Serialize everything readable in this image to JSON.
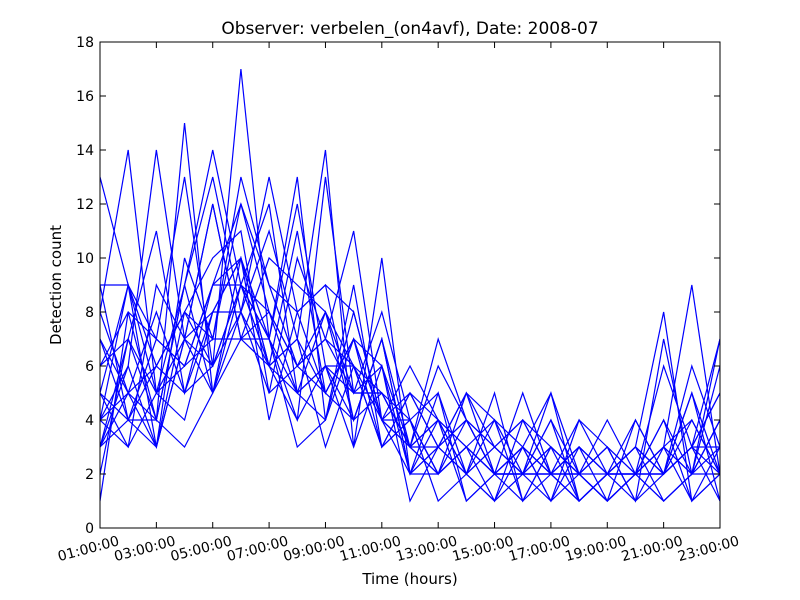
{
  "chart_data": {
    "type": "line",
    "title": "Observer: verbelen_(on4avf), Date: 2008-07",
    "xlabel": "Time (hours)",
    "ylabel": "Detection count",
    "xlim": [
      1,
      23
    ],
    "ylim": [
      0,
      18
    ],
    "x_ticks": [
      {
        "value": 1,
        "label": "01:00:00"
      },
      {
        "value": 3,
        "label": "03:00:00"
      },
      {
        "value": 5,
        "label": "05:00:00"
      },
      {
        "value": 7,
        "label": "07:00:00"
      },
      {
        "value": 9,
        "label": "09:00:00"
      },
      {
        "value": 11,
        "label": "11:00:00"
      },
      {
        "value": 13,
        "label": "13:00:00"
      },
      {
        "value": 15,
        "label": "15:00:00"
      },
      {
        "value": 17,
        "label": "17:00:00"
      },
      {
        "value": 19,
        "label": "19:00:00"
      },
      {
        "value": 21,
        "label": "21:00:00"
      },
      {
        "value": 23,
        "label": "23:00:00"
      }
    ],
    "y_ticks": [
      0,
      2,
      4,
      6,
      8,
      10,
      12,
      14,
      16,
      18
    ],
    "grid": false,
    "line_color": "#0000ff",
    "x": [
      1,
      2,
      3,
      4,
      5,
      6,
      7,
      8,
      9,
      10,
      11,
      12,
      13,
      14,
      15,
      16,
      17,
      18,
      19,
      20,
      21,
      22,
      23
    ],
    "series": [
      {
        "values": [
          13,
          9,
          7,
          6,
          9,
          12,
          9,
          6,
          5,
          7,
          6,
          3,
          2,
          4,
          2,
          3,
          2,
          1,
          2,
          3,
          2,
          3,
          5
        ]
      },
      {
        "values": [
          8,
          14,
          5,
          9,
          14,
          9,
          12,
          5,
          8,
          6,
          4,
          5,
          4,
          3,
          2,
          1,
          3,
          2,
          1,
          2,
          3,
          9,
          2
        ]
      },
      {
        "values": [
          3,
          6,
          14,
          7,
          6,
          17,
          7,
          13,
          4,
          9,
          3,
          4,
          1,
          2,
          3,
          4,
          2,
          2,
          3,
          2,
          1,
          2,
          4
        ]
      },
      {
        "values": [
          5,
          4,
          4,
          15,
          5,
          8,
          13,
          8,
          9,
          4,
          7,
          2,
          3,
          5,
          4,
          2,
          1,
          3,
          2,
          4,
          2,
          3,
          1
        ]
      },
      {
        "values": [
          2,
          7,
          11,
          5,
          8,
          10,
          6,
          4,
          13,
          5,
          5,
          3,
          6,
          4,
          2,
          3,
          5,
          2,
          1,
          2,
          4,
          1,
          3
        ]
      },
      {
        "values": [
          9,
          9,
          3,
          10,
          7,
          12,
          8,
          6,
          7,
          11,
          4,
          2,
          5,
          1,
          2,
          2,
          2,
          4,
          3,
          2,
          6,
          3,
          7
        ]
      },
      {
        "values": [
          4,
          3,
          9,
          7,
          12,
          7,
          10,
          9,
          8,
          5,
          8,
          4,
          2,
          3,
          1,
          4,
          3,
          1,
          2,
          1,
          3,
          2,
          2
        ]
      },
      {
        "values": [
          6,
          8,
          7,
          13,
          6,
          9,
          7,
          12,
          6,
          4,
          5,
          3,
          4,
          2,
          5,
          1,
          2,
          3,
          2,
          3,
          2,
          5,
          1
        ]
      },
      {
        "values": [
          7,
          5,
          6,
          8,
          10,
          11,
          5,
          10,
          7,
          6,
          3,
          5,
          3,
          4,
          3,
          2,
          4,
          2,
          1,
          2,
          2,
          3,
          2
        ]
      },
      {
        "values": [
          1,
          8,
          4,
          9,
          13,
          8,
          11,
          7,
          14,
          3,
          10,
          2,
          2,
          3,
          2,
          5,
          2,
          2,
          4,
          2,
          1,
          2,
          6
        ]
      },
      {
        "values": [
          4,
          9,
          6,
          5,
          9,
          10,
          6,
          11,
          5,
          7,
          4,
          3,
          7,
          4,
          3,
          2,
          5,
          1,
          2,
          3,
          8,
          1,
          2
        ]
      },
      {
        "values": [
          3,
          5,
          3,
          8,
          7,
          13,
          9,
          8,
          9,
          8,
          4,
          6,
          4,
          2,
          1,
          3,
          2,
          3,
          2,
          2,
          3,
          4,
          2
        ]
      },
      {
        "values": [
          5,
          9,
          5,
          7,
          12,
          7,
          8,
          6,
          8,
          4,
          7,
          3,
          3,
          5,
          2,
          2,
          3,
          2,
          1,
          2,
          2,
          6,
          3
        ]
      },
      {
        "values": [
          6,
          7,
          4,
          9,
          5,
          10,
          7,
          5,
          6,
          6,
          5,
          4,
          2,
          3,
          4,
          3,
          1,
          2,
          3,
          1,
          7,
          2,
          4
        ]
      },
      {
        "values": [
          3,
          4,
          7,
          6,
          9,
          9,
          6,
          7,
          5,
          7,
          3,
          4,
          5,
          2,
          3,
          4,
          2,
          1,
          2,
          3,
          2,
          3,
          5
        ]
      },
      {
        "values": [
          4,
          6,
          3,
          7,
          8,
          8,
          5,
          6,
          7,
          5,
          6,
          2,
          3,
          4,
          2,
          2,
          3,
          2,
          2,
          2,
          3,
          2,
          3
        ]
      },
      {
        "values": [
          8,
          5,
          8,
          5,
          6,
          9,
          8,
          5,
          4,
          8,
          4,
          3,
          4,
          1,
          2,
          3,
          2,
          3,
          1,
          2,
          2,
          4,
          2
        ]
      },
      {
        "values": [
          5,
          3,
          5,
          6,
          7,
          7,
          7,
          4,
          6,
          5,
          5,
          3,
          2,
          3,
          2,
          2,
          2,
          1,
          2,
          3,
          1,
          2,
          7
        ]
      },
      {
        "values": [
          7,
          4,
          6,
          8,
          6,
          8,
          6,
          7,
          3,
          6,
          3,
          5,
          3,
          2,
          4,
          1,
          3,
          2,
          3,
          1,
          2,
          5,
          2
        ]
      },
      {
        "values": [
          3,
          7,
          5,
          4,
          8,
          10,
          4,
          8,
          5,
          4,
          7,
          2,
          4,
          3,
          2,
          3,
          1,
          4,
          2,
          2,
          4,
          2,
          4
        ]
      },
      {
        "values": [
          4,
          5,
          4,
          3,
          5,
          9,
          7,
          3,
          4,
          7,
          4,
          4,
          2,
          5,
          3,
          2,
          2,
          2,
          1,
          4,
          2,
          3,
          3
        ]
      },
      {
        "values": [
          9,
          4,
          3,
          7,
          5,
          7,
          6,
          5,
          6,
          3,
          6,
          1,
          3,
          2,
          1,
          2,
          4,
          1,
          2,
          2,
          3,
          1,
          2
        ]
      }
    ]
  }
}
